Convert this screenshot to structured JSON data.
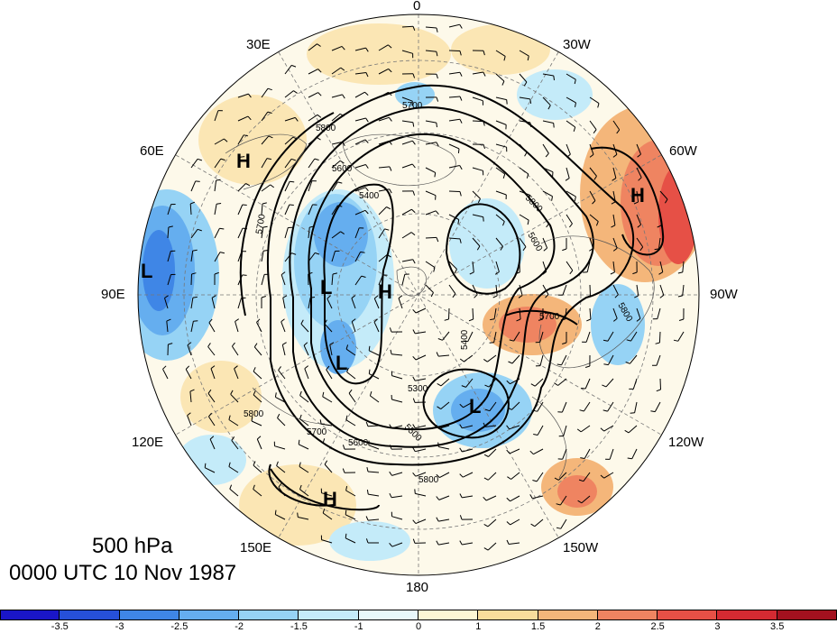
{
  "title": {
    "level": "500 hPa",
    "datetime": "0000 UTC 10 Nov 1987"
  },
  "longitude_labels": [
    "0",
    "30W",
    "60W",
    "90W",
    "120W",
    "150W",
    "180",
    "150E",
    "120E",
    "90E",
    "60E",
    "30E"
  ],
  "pressure_systems": [
    {
      "type": "H",
      "label": "H",
      "region": "60E mid-latitudes"
    },
    {
      "type": "L",
      "label": "L",
      "region": "90E, near map edge"
    },
    {
      "type": "L",
      "label": "L",
      "region": "Siberia trough"
    },
    {
      "type": "L",
      "label": "L",
      "region": "East Siberia"
    },
    {
      "type": "H",
      "label": "H",
      "region": "Arctic ridge"
    },
    {
      "type": "L",
      "label": "L",
      "region": "Bering Sea"
    },
    {
      "type": "H",
      "label": "H",
      "region": "Pacific 150E"
    },
    {
      "type": "H",
      "label": "H",
      "region": "North Atlantic 60W"
    }
  ],
  "contour_labels": [
    "5700",
    "5800",
    "5600",
    "5400",
    "5700",
    "5800",
    "5600",
    "5700",
    "5800",
    "5300",
    "5400",
    "5500",
    "5700",
    "5800",
    "5600",
    "5800"
  ],
  "colorbar": {
    "ticks": [
      "-3.5",
      "-3",
      "-2.5",
      "-2",
      "-1.5",
      "-1",
      "0",
      "1",
      "1.5",
      "2",
      "2.5",
      "3",
      "3.5"
    ],
    "colors": [
      "#1a16c8",
      "#2650d9",
      "#3f86e6",
      "#65aeef",
      "#96d3f5",
      "#c4ebf9",
      "#e8f8fb",
      "#fdf7d4",
      "#f8dc9b",
      "#f4b67a",
      "#ef8461",
      "#e65046",
      "#d42a32",
      "#a3111f"
    ]
  }
}
